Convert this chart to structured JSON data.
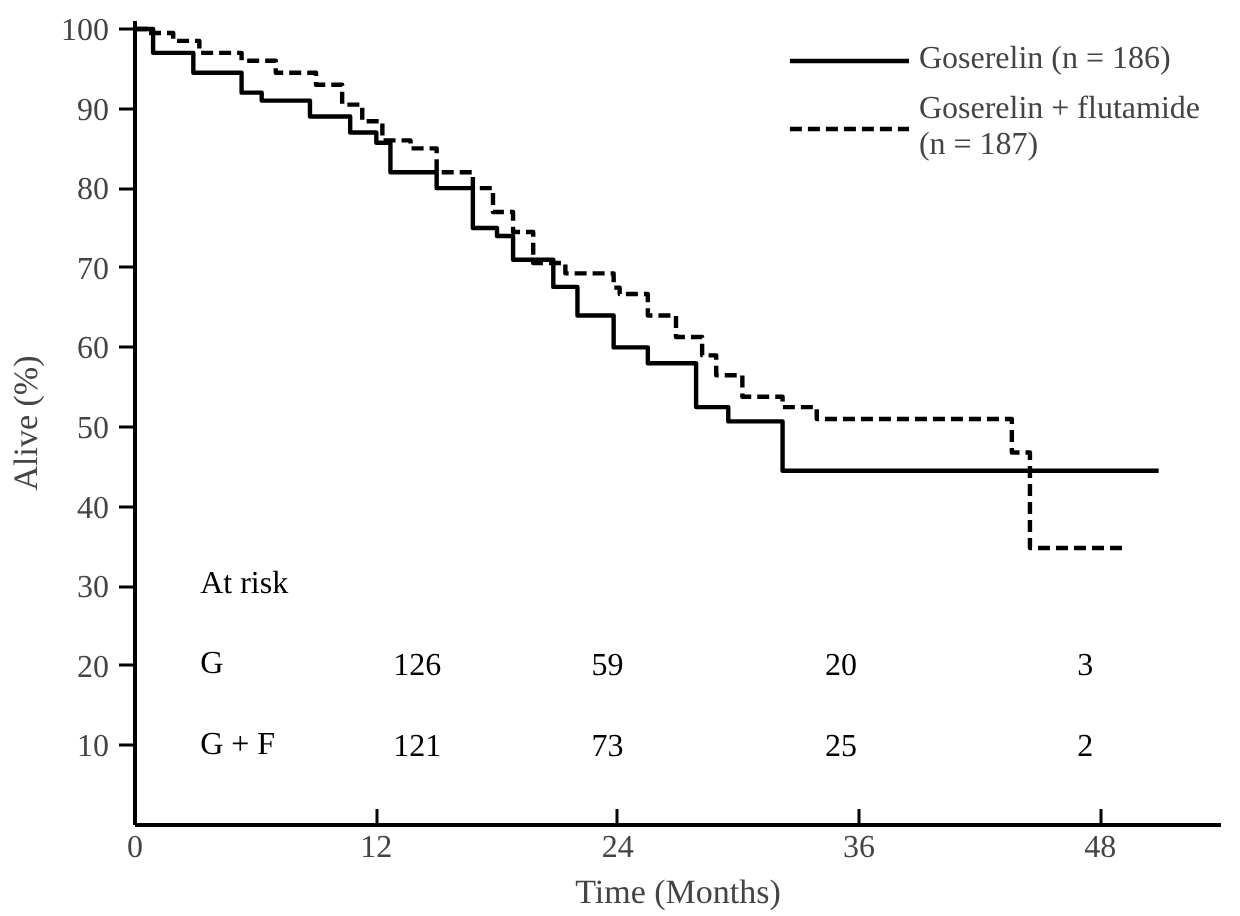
{
  "chart_data": {
    "type": "step",
    "xlabel": "Time (Months)",
    "ylabel": "Alive (%)",
    "xlim": [
      0,
      54
    ],
    "ylim": [
      0,
      101
    ],
    "xticks": [
      0,
      12,
      24,
      36,
      48
    ],
    "yticks": [
      10,
      20,
      30,
      40,
      50,
      60,
      70,
      80,
      90,
      100
    ],
    "grid": false,
    "legend": "top right",
    "series": [
      {
        "name": "Goserelin (n = 186)",
        "color": "#000000",
        "line_style": "solid",
        "x": [
          0,
          0.9,
          2.9,
          5.3,
          6.3,
          8.7,
          10.7,
          12,
          12.7,
          15,
          16.8,
          18,
          18.8,
          20.8,
          22,
          23.8,
          25.5,
          27.9,
          29.5,
          32.2,
          50.9
        ],
        "values": [
          100,
          97,
          94.5,
          92,
          91,
          89,
          87,
          85.7,
          82,
          80,
          75,
          74,
          71,
          67.6,
          64,
          60,
          58,
          52.5,
          50.7,
          44.5,
          44.5
        ]
      },
      {
        "name": "Goserelin + flutamide\n(n = 187)",
        "color": "#000000",
        "line_style": "dashed",
        "x": [
          0,
          0.6,
          1.9,
          3.2,
          5.3,
          7,
          9,
          10.3,
          11.3,
          12.3,
          13.7,
          15,
          16.8,
          17.8,
          18.8,
          19.8,
          21.4,
          23.8,
          24.1,
          25.5,
          26.9,
          28.2,
          28.9,
          30.2,
          32.2,
          33.9,
          43.6,
          44.5,
          49.2
        ],
        "values": [
          100,
          99.5,
          98.5,
          97,
          96,
          94.5,
          93,
          90.5,
          88.4,
          86,
          85,
          82,
          80,
          77,
          74.5,
          70.6,
          69.3,
          67.5,
          66.7,
          64,
          61.3,
          59,
          56.5,
          53.8,
          52.5,
          51,
          46.8,
          34.8,
          34.8
        ]
      }
    ],
    "annotations": [
      "At risk",
      "G",
      "126",
      "59",
      "20",
      "3",
      "G + F",
      "121",
      "73",
      "25",
      "2"
    ]
  }
}
